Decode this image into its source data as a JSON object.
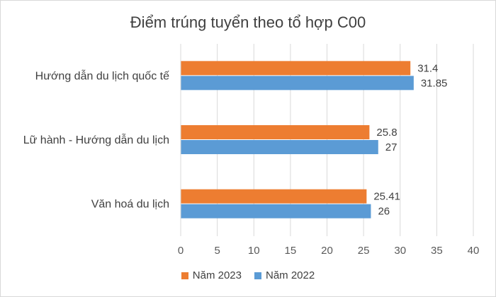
{
  "chart_data": {
    "type": "bar",
    "orientation": "horizontal",
    "title": "Điểm trúng tuyển theo tổ hợp C00",
    "categories": [
      "Hướng dẫn du lịch quốc tế",
      "Lữ hành - Hướng dẫn du lịch",
      "Văn hoá du lịch"
    ],
    "series": [
      {
        "name": "Năm 2023",
        "color": "#ED7D31",
        "values": [
          31.4,
          25.8,
          25.41
        ],
        "labels": [
          "31.4",
          "25.8",
          "25.41"
        ]
      },
      {
        "name": "Năm 2022",
        "color": "#5B9BD5",
        "values": [
          31.85,
          27,
          26
        ],
        "labels": [
          "31.85",
          "27",
          "26"
        ]
      }
    ],
    "xlim": [
      0,
      40
    ],
    "xticks": [
      "0",
      "5",
      "10",
      "15",
      "20",
      "25",
      "30",
      "35",
      "40"
    ],
    "grid": true,
    "legend_position": "bottom"
  }
}
